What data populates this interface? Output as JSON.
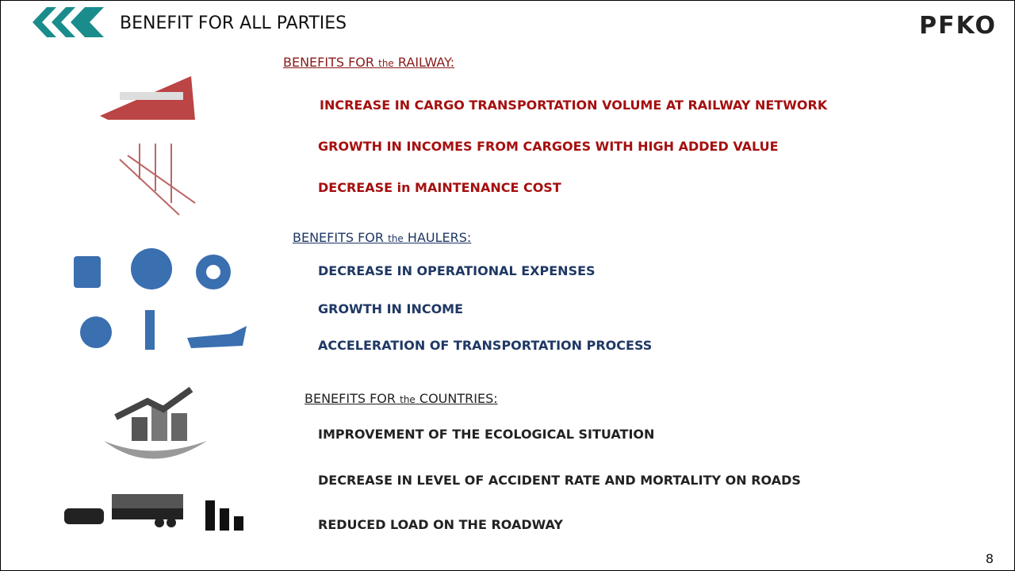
{
  "header": {
    "title": "BENEFIT FOR ALL PARTIES",
    "logo": "PFKO"
  },
  "sections": [
    {
      "heading": {
        "pre": "BENEFITS FOR",
        "small": "the",
        "post": "RAILWAY:"
      },
      "items": [
        "INCREASE IN CARGO TRANSPORTATION VOLUME AT RAILWAY NETWORK",
        "GROWTH IN INCOMES FROM CARGOES WITH HIGH ADDED VALUE",
        "DECREASE in MAINTENANCE COST"
      ]
    },
    {
      "heading": {
        "pre": "BENEFITS FOR",
        "small": "the",
        "post": "HAULERS:"
      },
      "items": [
        "DECREASE IN OPERATIONAL EXPENSES",
        "GROWTH IN INCOME",
        "ACCELERATION OF TRANSPORTATION PROCESS"
      ]
    },
    {
      "heading": {
        "pre": "BENEFITS FOR",
        "small": "the",
        "post": "COUNTRIES:"
      },
      "items": [
        "IMPROVEMENT OF THE ECOLOGICAL SITUATION",
        "DECREASE IN LEVEL OF ACCIDENT RATE AND MORTALITY ON ROADS",
        "REDUCED LOAD ON THE ROADWAY"
      ]
    }
  ],
  "page_number": "8"
}
